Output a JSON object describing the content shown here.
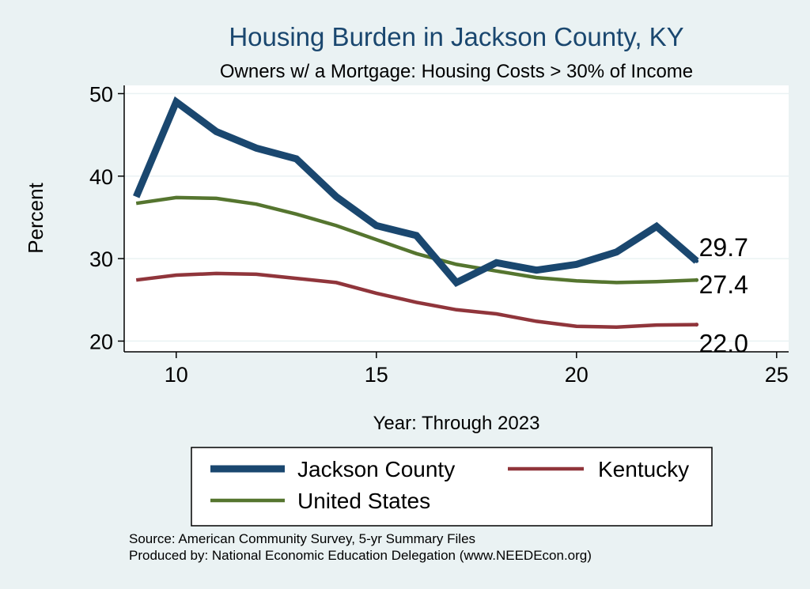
{
  "chart_data": {
    "type": "line",
    "title": "Housing Burden in Jackson County, KY",
    "subtitle": "Owners w/ a Mortgage: Housing Costs > 30% of Income",
    "xlabel": "Year: Through 2023",
    "ylabel": "Percent",
    "xlim": [
      8.7,
      25.3
    ],
    "ylim": [
      18.7,
      51.0
    ],
    "xticks": [
      10,
      15,
      20,
      25
    ],
    "yticks": [
      20,
      30,
      40,
      50
    ],
    "grid": true,
    "legend_position": "bottom",
    "x": [
      9,
      10,
      11,
      12,
      13,
      14,
      15,
      16,
      17,
      18,
      19,
      20,
      21,
      22,
      23
    ],
    "series": [
      {
        "name": "Jackson County",
        "color": "#1a476f",
        "values": [
          37.5,
          49.0,
          45.4,
          43.4,
          42.1,
          37.5,
          34.0,
          32.8,
          27.1,
          29.5,
          28.6,
          29.3,
          30.8,
          33.9,
          29.7
        ],
        "end_label": "29.7"
      },
      {
        "name": "Kentucky",
        "color": "#90353b",
        "values": [
          27.4,
          28.0,
          28.2,
          28.1,
          27.6,
          27.1,
          25.8,
          24.7,
          23.8,
          23.3,
          22.4,
          21.8,
          21.7,
          21.95,
          22.0
        ],
        "end_label": "22.0"
      },
      {
        "name": "United States",
        "color": "#55752f",
        "values": [
          36.7,
          37.4,
          37.3,
          36.6,
          35.4,
          34.0,
          32.3,
          30.6,
          29.3,
          28.5,
          27.7,
          27.3,
          27.1,
          27.2,
          27.4
        ],
        "end_label": "27.4"
      }
    ],
    "legend": [
      "Jackson County",
      "Kentucky",
      "United States"
    ],
    "notes": [
      "Source: American Community Survey, 5-yr Summary Files",
      "Produced by: National Economic Education Delegation (www.NEEDEcon.org)"
    ]
  }
}
